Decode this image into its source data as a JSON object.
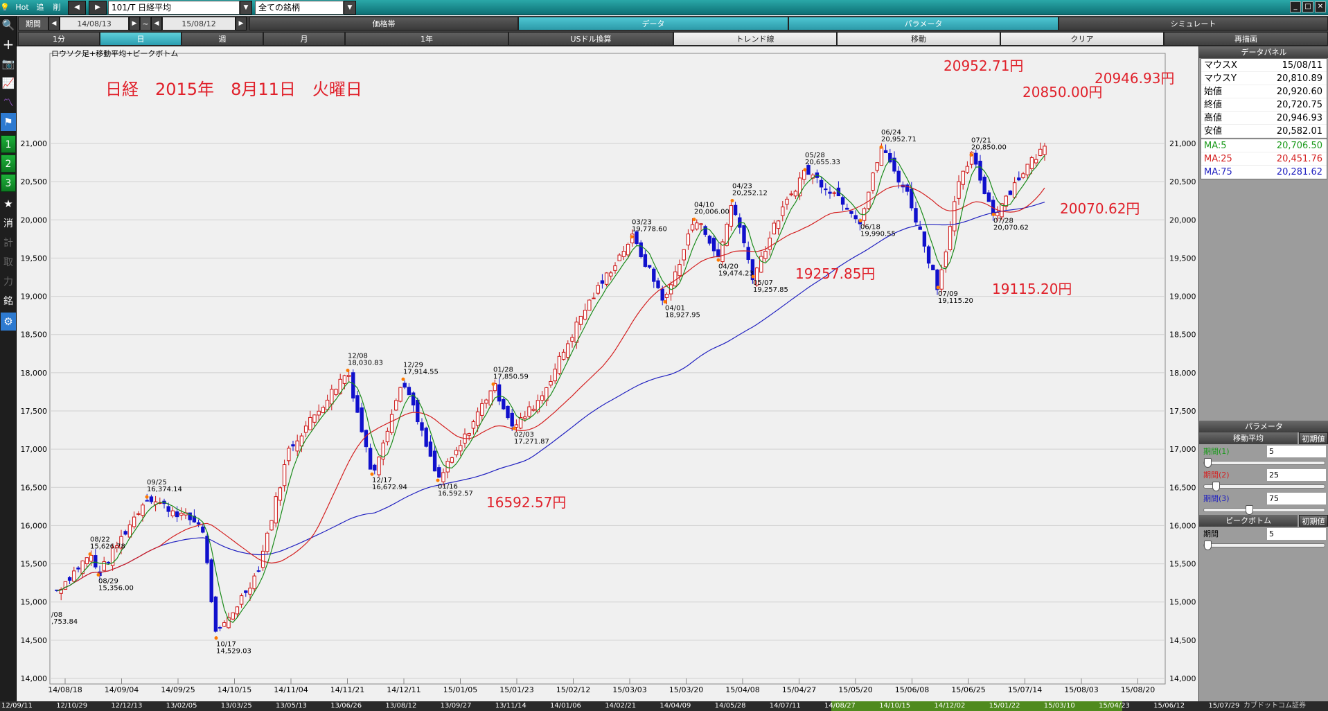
{
  "titlebar": {
    "hot_label": "Hot",
    "add_label": "追",
    "delete_label": "削",
    "symbol_value": "101/T 日経平均",
    "watchlist_value": "全ての銘柄",
    "minimize": "_",
    "maximize": "□",
    "close": "✕"
  },
  "toolbar": {
    "period_label": "期間",
    "date_from": "14/08/13",
    "tilde": "~",
    "date_to": "15/08/12",
    "tabs": [
      {
        "label": "価格帯",
        "active": false
      },
      {
        "label": "データ",
        "active": true
      },
      {
        "label": "パラメータ",
        "active": true
      },
      {
        "label": "シミュレート",
        "active": false
      }
    ]
  },
  "timeframes": [
    {
      "label": "1分",
      "active": false
    },
    {
      "label": "日",
      "active": true
    },
    {
      "label": "週",
      "active": false
    },
    {
      "label": "月",
      "active": false
    },
    {
      "label": "1年",
      "active": false
    },
    {
      "label": "USドル換算",
      "active": false
    },
    {
      "label": "トレンド線",
      "light": true
    },
    {
      "label": "移動",
      "light": true
    },
    {
      "label": "クリア",
      "light": true
    },
    {
      "label": "再描画",
      "light": false
    }
  ],
  "sidebar": {
    "numbers": [
      "1",
      "2",
      "3"
    ],
    "kanji": [
      "消",
      "計",
      "取",
      "力",
      "銘"
    ]
  },
  "chart": {
    "caption": "ロウソク足+移動平均+ピークボトム",
    "headline": "日経　2015年　8月11日　火曜日",
    "callouts": [
      {
        "text": "20952.71円"
      },
      {
        "text": "20850.00円"
      },
      {
        "text": "20946.93円"
      },
      {
        "text": "20070.62円"
      },
      {
        "text": "19257.85円"
      },
      {
        "text": "19115.20円"
      },
      {
        "text": "16592.57円"
      }
    ]
  },
  "chart_data": {
    "type": "candlestick",
    "y_axis_labels": [
      "21,000",
      "20,500",
      "20,000",
      "19,500",
      "19,000",
      "18,500",
      "18,000",
      "17,500",
      "17,000",
      "16,500",
      "16,000",
      "15,500",
      "15,000",
      "14,500",
      "14,000"
    ],
    "ylim": [
      14000,
      21000
    ],
    "x_axis_labels": [
      "14/08/18",
      "14/09/04",
      "14/09/25",
      "14/10/15",
      "14/11/04",
      "14/11/21",
      "14/12/11",
      "15/01/05",
      "15/01/23",
      "15/02/12",
      "15/03/03",
      "15/03/20",
      "15/04/08",
      "15/04/27",
      "15/05/20",
      "15/06/08",
      "15/06/25",
      "15/07/14",
      "15/08/03",
      "15/08/20"
    ],
    "series": [
      {
        "name": "MA:5",
        "color": "#1a8a1a"
      },
      {
        "name": "MA:25",
        "color": "#d42020"
      },
      {
        "name": "MA:75",
        "color": "#2020c0"
      }
    ],
    "peaks_bottoms": [
      {
        "date": "08/22",
        "value": "15,626.78"
      },
      {
        "date": "08/29",
        "value": "15,356.00"
      },
      {
        "date": "09/25",
        "value": "16,374.14"
      },
      {
        "date": "10/17",
        "value": "14,529.03"
      },
      {
        "date": "12/08",
        "value": "18,030.83"
      },
      {
        "date": "12/17",
        "value": "16,672.94"
      },
      {
        "date": "12/29",
        "value": "17,914.55"
      },
      {
        "date": "01/16",
        "value": "16,592.57"
      },
      {
        "date": "01/28",
        "value": "17,850.59"
      },
      {
        "date": "02/03",
        "value": "17,271.87"
      },
      {
        "date": "03/23",
        "value": "19,778.60"
      },
      {
        "date": "04/01",
        "value": "18,927.95"
      },
      {
        "date": "04/10",
        "value": "20,006.00"
      },
      {
        "date": "04/20",
        "value": "19,474.23"
      },
      {
        "date": "04/23",
        "value": "20,252.12"
      },
      {
        "date": "05/07",
        "value": "19,257.85"
      },
      {
        "date": "05/28",
        "value": "20,655.33"
      },
      {
        "date": "06/18",
        "value": "19,990.55"
      },
      {
        "date": "06/24",
        "value": "20,952.71"
      },
      {
        "date": "07/09",
        "value": "19,115.20"
      },
      {
        "date": "07/21",
        "value": "20,850.00"
      },
      {
        "date": "07/28",
        "value": "20,070.62"
      }
    ],
    "left_edge_label": {
      "date": "/08",
      "value": ",753.84"
    }
  },
  "panel": {
    "data_header": "データパネル",
    "rows": [
      {
        "k": "マウスX",
        "v": "15/08/11",
        "color": "#000000"
      },
      {
        "k": "マウスY",
        "v": "20,810.89",
        "color": "#000000"
      },
      {
        "k": "始値",
        "v": "20,920.60",
        "color": "#000000"
      },
      {
        "k": "終値",
        "v": "20,720.75",
        "color": "#000000"
      },
      {
        "k": "高値",
        "v": "20,946.93",
        "color": "#000000"
      },
      {
        "k": "安値",
        "v": "20,582.01",
        "color": "#000000"
      },
      {
        "k": "MA:5",
        "v": "20,706.50",
        "color": "#1a9a1a"
      },
      {
        "k": "MA:25",
        "v": "20,451.76",
        "color": "#d42020"
      },
      {
        "k": "MA:75",
        "v": "20,281.62",
        "color": "#2020c0"
      }
    ],
    "param_header": "パラメータ",
    "ma_header": "移動平均",
    "reset_label": "初期値",
    "ma_params": [
      {
        "name": "期間(1)",
        "value": "5",
        "color": "#1a9a1a"
      },
      {
        "name": "期間(2)",
        "value": "25",
        "color": "#d42020"
      },
      {
        "name": "期間(3)",
        "value": "75",
        "color": "#2020c0"
      }
    ],
    "pb_header": "ピークボトム",
    "pb_param": {
      "name": "期間",
      "value": "5"
    }
  },
  "bottom_nav": {
    "labels": [
      "12/09/11",
      "12/10/29",
      "12/12/13",
      "13/02/05",
      "13/03/25",
      "13/05/13",
      "13/06/26",
      "13/08/12",
      "13/09/27",
      "13/11/14",
      "14/01/06",
      "14/02/21",
      "14/04/09",
      "14/05/28",
      "14/07/11",
      "14/08/27",
      "14/10/15",
      "14/12/02",
      "15/01/22",
      "15/03/10",
      "15/04/23",
      "15/06/12",
      "15/07/29"
    ],
    "brand": "カブドットコム証券"
  }
}
